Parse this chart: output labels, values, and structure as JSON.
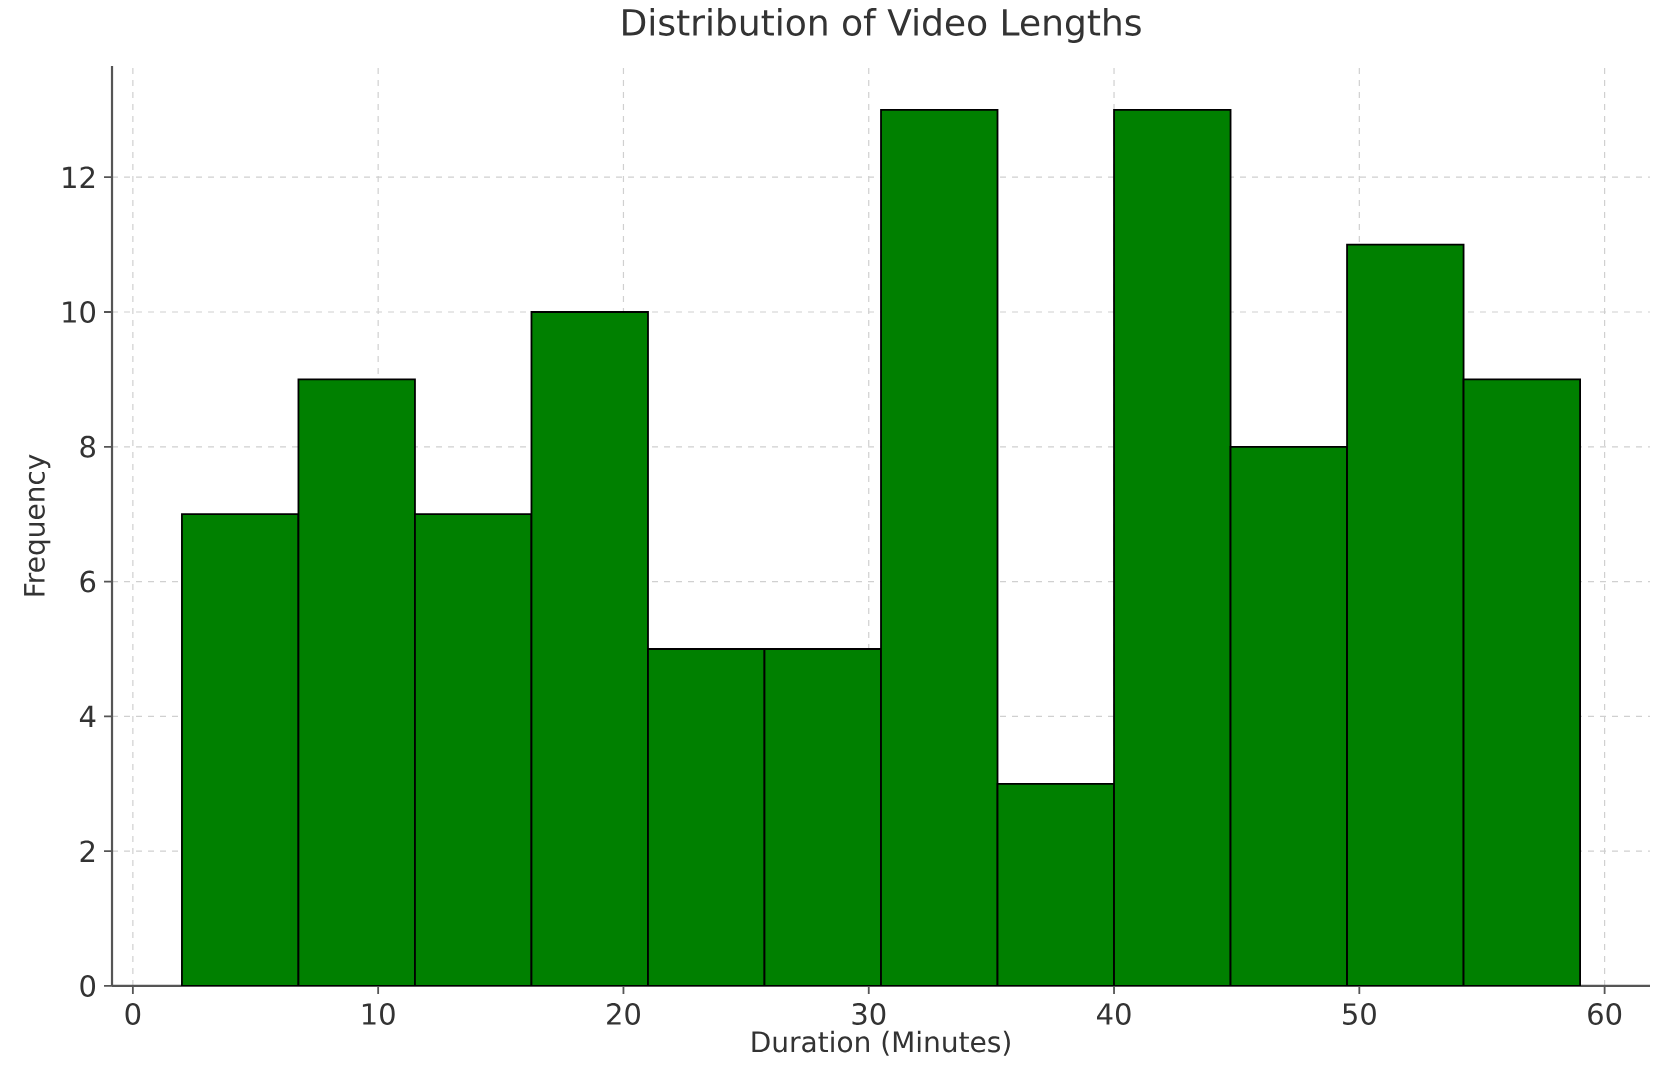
{
  "chart_data": {
    "type": "histogram",
    "title": "Distribution of Video Lengths",
    "xlabel": "Duration (Minutes)",
    "ylabel": "Frequency",
    "bins": [
      2,
      6.75,
      11.5,
      16.25,
      21,
      25.75,
      30.5,
      35.25,
      40,
      44.75,
      49.5,
      54.25,
      59
    ],
    "values": [
      7,
      9,
      7,
      10,
      5,
      5,
      13,
      3,
      13,
      8,
      11,
      9
    ],
    "color": "#008000",
    "xlim": [
      -0.85,
      61.85
    ],
    "ylim": [
      0,
      13.65
    ],
    "xticks": [
      0,
      10,
      20,
      30,
      40,
      50,
      60
    ],
    "yticks": [
      0,
      2,
      4,
      6,
      8,
      10,
      12
    ],
    "grid": true
  }
}
